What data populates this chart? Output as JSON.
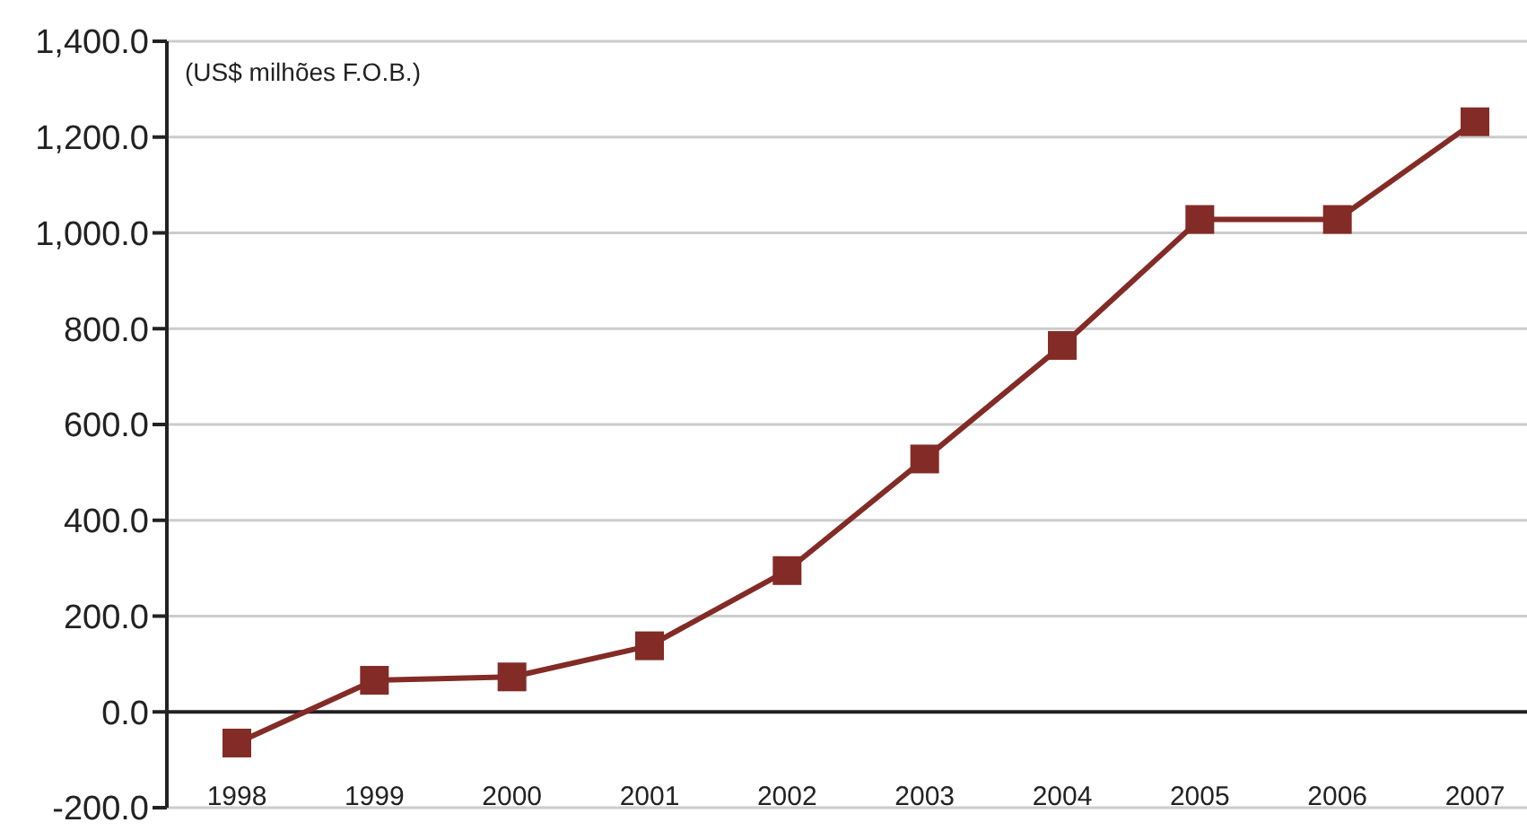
{
  "chart_data": {
    "type": "line",
    "annotations": [
      "(US$ milhões F.O.B.)"
    ],
    "categories": [
      "1998",
      "1999",
      "2000",
      "2001",
      "2002",
      "2003",
      "2004",
      "2005",
      "2006",
      "2007"
    ],
    "series": [
      {
        "color": "#832b26",
        "values": [
          -65,
          66,
          73,
          138,
          295,
          528,
          765,
          1028,
          1028,
          1232
        ]
      }
    ],
    "ylim": [
      -200,
      1400
    ],
    "yticks": [
      {
        "value": -200,
        "label": "-200.0"
      },
      {
        "value": 0,
        "label": "0.0"
      },
      {
        "value": 200,
        "label": "200.0"
      },
      {
        "value": 400,
        "label": "400.0"
      },
      {
        "value": 600,
        "label": "600.0"
      },
      {
        "value": 800,
        "label": "800.0"
      },
      {
        "value": 1000,
        "label": "1,000.0"
      },
      {
        "value": 1200,
        "label": "1,200.0"
      },
      {
        "value": 1400,
        "label": "1,400.0"
      }
    ],
    "grid": "y",
    "marker": "square",
    "line_style": "solid",
    "legend": false
  }
}
